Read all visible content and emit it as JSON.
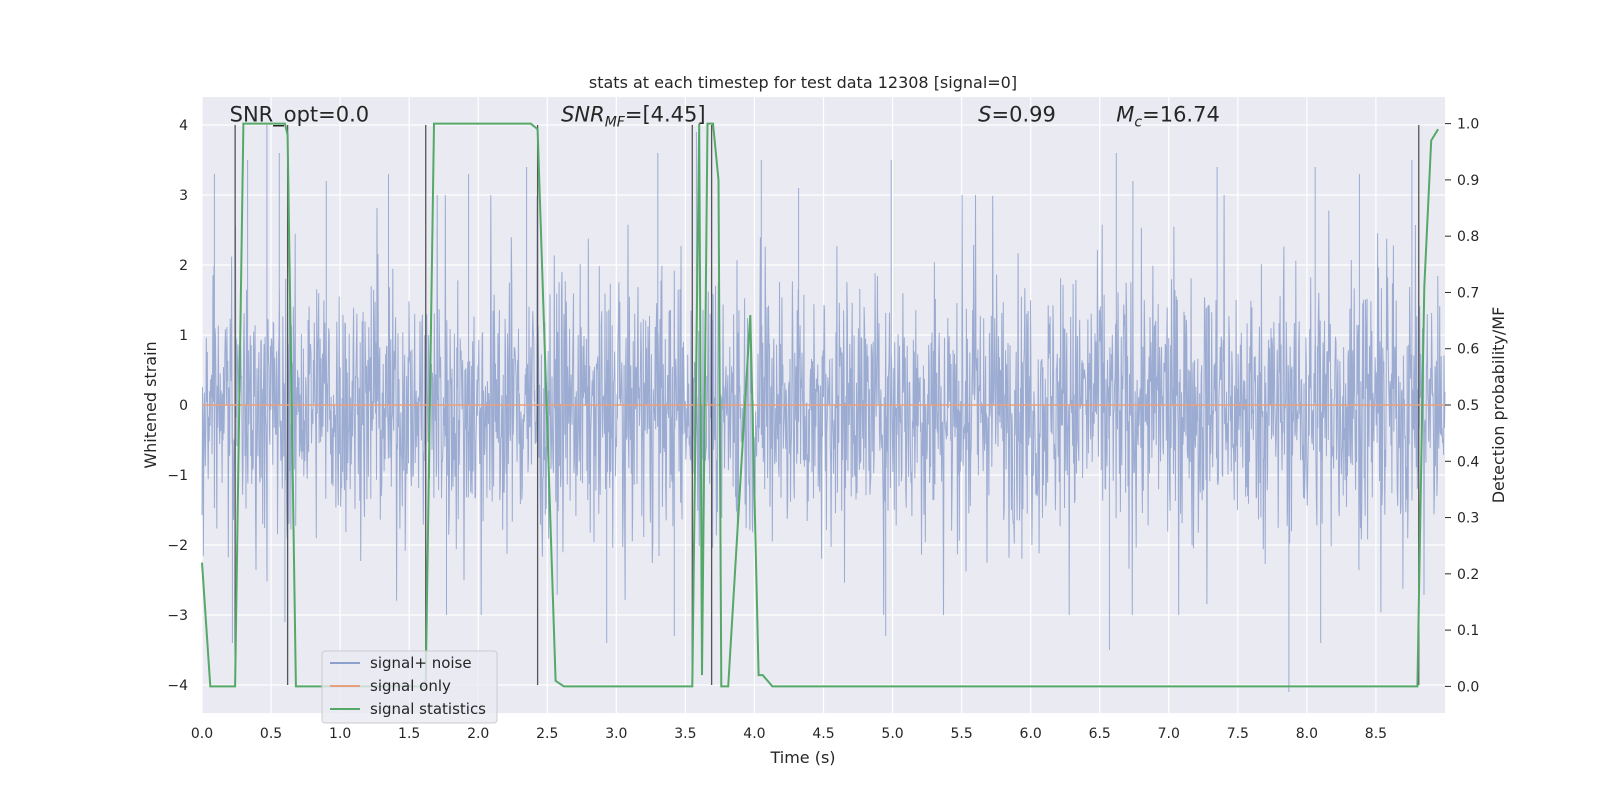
{
  "chart_data": {
    "type": "line",
    "title": "stats at each timestep for test data 12308 [signal=0]",
    "xlabel": "Time (s)",
    "ylabel": "Whitened strain",
    "y2label": "Detection probability/MF",
    "xlim": [
      0,
      9.0
    ],
    "ylim": [
      -4.4,
      4.4
    ],
    "y2lim": [
      -0.0473,
      1.0473
    ],
    "xticks": [
      0.0,
      0.5,
      1.0,
      1.5,
      2.0,
      2.5,
      3.0,
      3.5,
      4.0,
      4.5,
      5.0,
      5.5,
      6.0,
      6.5,
      7.0,
      7.5,
      8.0,
      8.5
    ],
    "xtick_labels": [
      "0.0",
      "0.5",
      "1.0",
      "1.5",
      "2.0",
      "2.5",
      "3.0",
      "3.5",
      "4.0",
      "4.5",
      "5.0",
      "5.5",
      "6.0",
      "6.5",
      "7.0",
      "7.5",
      "8.0",
      "8.5"
    ],
    "yticks": [
      -4,
      -3,
      -2,
      -1,
      0,
      1,
      2,
      3,
      4
    ],
    "ytick_labels": [
      "−4",
      "−3",
      "−2",
      "−1",
      "0",
      "1",
      "2",
      "3",
      "4"
    ],
    "y2ticks": [
      0.0,
      0.1,
      0.2,
      0.3,
      0.4,
      0.5,
      0.6,
      0.7,
      0.8,
      0.9,
      1.0
    ],
    "y2tick_labels": [
      "0.0",
      "0.1",
      "0.2",
      "0.3",
      "0.4",
      "0.5",
      "0.6",
      "0.7",
      "0.8",
      "0.9",
      "1.0"
    ],
    "grid": true,
    "legend_position": "lower-left",
    "legend": [
      {
        "label": "signal+ noise",
        "color": "#8da0cb"
      },
      {
        "label": "signal only",
        "color": "#e8a07c"
      },
      {
        "label": "signal statistics",
        "color": "#55a868"
      }
    ],
    "annotations": [
      {
        "text": "SNR_opt=0.0",
        "x": 0.2,
        "y": 4.05
      },
      {
        "text": "SNR",
        "sub": "MF",
        "tail": "=[4.45]",
        "italic": true,
        "x": 2.6,
        "y": 4.05
      },
      {
        "text": "S",
        "tail": "=0.99",
        "italic": true,
        "x": 5.62,
        "y": 4.05
      },
      {
        "text": "M",
        "sub": "c",
        "tail": "=16.74",
        "italic": true,
        "x": 6.62,
        "y": 4.05
      }
    ],
    "signal_only": {
      "x": [
        0,
        9.0
      ],
      "y": [
        0,
        0
      ]
    },
    "noise_envelope": {
      "note": "whitened strain oscillates within the band; spike extremes listed",
      "core_band": [
        -1.6,
        1.6
      ],
      "upper_spikes": [
        [
          0.09,
          3.3
        ],
        [
          0.33,
          3.5
        ],
        [
          0.47,
          4.0
        ],
        [
          0.56,
          3.6
        ],
        [
          0.9,
          3.2
        ],
        [
          1.35,
          3.3
        ],
        [
          1.93,
          3.3
        ],
        [
          2.35,
          3.4
        ],
        [
          3.3,
          3.6
        ],
        [
          3.58,
          3.9
        ],
        [
          4.05,
          3.5
        ],
        [
          4.32,
          3.1
        ],
        [
          4.99,
          3.5
        ],
        [
          6.62,
          3.6
        ],
        [
          6.74,
          3.2
        ],
        [
          7.35,
          3.4
        ],
        [
          8.06,
          3.4
        ],
        [
          8.38,
          3.3
        ],
        [
          8.76,
          3.5
        ]
      ],
      "lower_spikes": [
        [
          0.22,
          -3.4
        ],
        [
          0.6,
          -3.1
        ],
        [
          1.77,
          -3.0
        ],
        [
          2.93,
          -3.4
        ],
        [
          3.42,
          -3.3
        ],
        [
          3.62,
          -3.4
        ],
        [
          4.95,
          -3.3
        ],
        [
          6.57,
          -3.5
        ],
        [
          7.87,
          -4.1
        ],
        [
          8.1,
          -3.4
        ]
      ]
    },
    "series": [
      {
        "name": "signal statistics",
        "axis": "right",
        "x": [
          0.0,
          0.06,
          0.24,
          0.3,
          0.6,
          0.62,
          0.68,
          1.62,
          1.68,
          2.38,
          2.43,
          2.56,
          2.62,
          3.55,
          3.6,
          3.62,
          3.66,
          3.7,
          3.74,
          3.76,
          3.81,
          3.97,
          4.03,
          4.06,
          4.13,
          5.0,
          8.8,
          8.85,
          8.9,
          8.95
        ],
        "values": [
          0.22,
          0.0,
          0.0,
          1.0,
          1.0,
          0.98,
          0.0,
          0.0,
          1.0,
          1.0,
          0.99,
          0.01,
          0.0,
          0.0,
          1.0,
          0.02,
          1.0,
          1.0,
          0.9,
          0.0,
          0.0,
          0.66,
          0.02,
          0.02,
          0.0,
          0.0,
          0.0,
          0.71,
          0.97,
          0.99
        ]
      }
    ],
    "marker_lines": [
      0.24,
      0.62,
      1.62,
      2.43,
      3.55,
      3.69,
      8.81
    ]
  }
}
